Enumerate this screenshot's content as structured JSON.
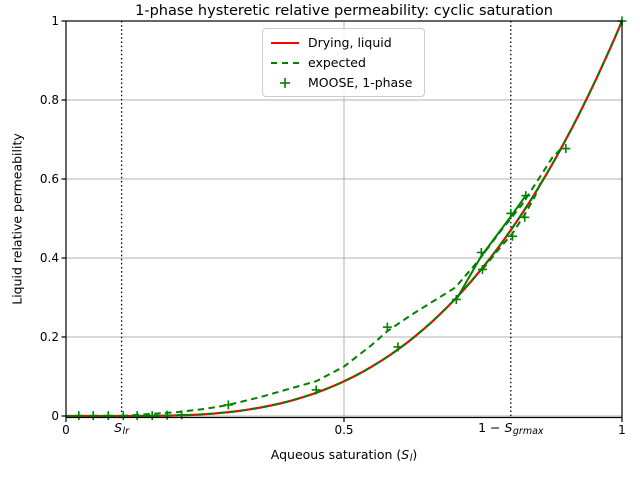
{
  "figure": {
    "background": "#ffffff"
  },
  "chart_data": {
    "type": "line",
    "title": "1-phase hysteretic relative permeability: cyclic saturation",
    "xlabel": {
      "pre": "Aqueous saturation (",
      "sym": "S",
      "sub": "l",
      "post": ")"
    },
    "ylabel": "Liquid relative permeability",
    "xlim": [
      0,
      1
    ],
    "ylim": [
      0,
      1
    ],
    "xticks": [
      {
        "v": 0,
        "label": "0"
      },
      {
        "v": 0.5,
        "label": "0.5"
      },
      {
        "v": 1,
        "label": "1"
      }
    ],
    "yticks": [
      {
        "v": 0,
        "label": "0"
      },
      {
        "v": 0.2,
        "label": "0.2"
      },
      {
        "v": 0.4,
        "label": "0.4"
      },
      {
        "v": 0.6,
        "label": "0.6"
      },
      {
        "v": 0.8,
        "label": "0.8"
      },
      {
        "v": 1,
        "label": "1"
      }
    ],
    "grid": {
      "on": true,
      "color": "#b0b0b0"
    },
    "vlines": [
      {
        "x": 0.1,
        "color": "#000000",
        "style": "dotted",
        "label": {
          "pre": "",
          "sym": "S",
          "sub": "lr"
        }
      },
      {
        "x": 0.8,
        "color": "#000000",
        "style": "dotted",
        "label": {
          "pre": "1 − ",
          "sym": "S",
          "sub": "grmax"
        }
      }
    ],
    "legend": {
      "position": "upper center",
      "entries": [
        {
          "label": "Drying, liquid",
          "sample": "line-solid",
          "color": "#ff0000"
        },
        {
          "label": "expected",
          "sample": "line-dashed",
          "color": "#008000"
        },
        {
          "label": "MOOSE, 1-phase",
          "sample": "plus-marker",
          "color": "#008000"
        }
      ]
    },
    "series": [
      {
        "name": "Drying, liquid",
        "color": "#ff0000",
        "style": "solid",
        "model": {
          "kind": "corey_drying",
          "s_lr": 0.1,
          "exponent": 3,
          "range": [
            0,
            1
          ]
        }
      },
      {
        "name": "expected",
        "color": "#008000",
        "style": "dashed",
        "branches": {
          "drying_overlay": {
            "kind": "corey_drying",
            "s_lr": 0.1,
            "exponent": 3,
            "range": [
              0,
              1
            ]
          },
          "wetting": [
            [
              0.1,
              0
            ],
            [
              0.2,
              0.01
            ],
            [
              0.25,
              0.018
            ],
            [
              0.292,
              0.028
            ],
            [
              0.35,
              0.048
            ],
            [
              0.4,
              0.068
            ],
            [
              0.45,
              0.088
            ],
            [
              0.5,
              0.125
            ],
            [
              0.55,
              0.18
            ],
            [
              0.578,
              0.215
            ],
            [
              0.62,
              0.255
            ],
            [
              0.66,
              0.29
            ],
            [
              0.7,
              0.325
            ],
            [
              0.74,
              0.39
            ],
            [
              0.78,
              0.465
            ],
            [
              0.82,
              0.535
            ],
            [
              0.85,
              0.6
            ],
            [
              0.875,
              0.655
            ],
            [
              0.895,
              0.683
            ]
          ],
          "rewetting_scan": [
            [
              0.749,
              0.371
            ],
            [
              0.78,
              0.425
            ],
            [
              0.803,
              0.462
            ],
            [
              0.825,
              0.51
            ],
            [
              0.843,
              0.555
            ],
            [
              0.855,
              0.595
            ]
          ]
        }
      },
      {
        "name": "MOOSE, 1-phase",
        "color": "#008000",
        "style": "plus",
        "connecting_scan": [
          [
            0.702,
            0.295
          ],
          [
            0.747,
            0.405
          ],
          [
            0.8,
            0.505
          ],
          [
            0.827,
            0.558
          ]
        ],
        "points": [
          [
            0.023,
            0.001
          ],
          [
            0.049,
            0.001
          ],
          [
            0.076,
            0.001
          ],
          [
            0.103,
            0.001
          ],
          [
            0.128,
            0.001
          ],
          [
            0.155,
            0.001
          ],
          [
            0.182,
            0.002
          ],
          [
            0.208,
            0.003
          ],
          [
            0.292,
            0.028
          ],
          [
            0.45,
            0.066
          ],
          [
            0.578,
            0.225
          ],
          [
            0.597,
            0.175
          ],
          [
            0.702,
            0.295
          ],
          [
            0.747,
            0.414
          ],
          [
            0.749,
            0.371
          ],
          [
            0.8,
            0.513
          ],
          [
            0.803,
            0.455
          ],
          [
            0.825,
            0.503
          ],
          [
            0.827,
            0.558
          ],
          [
            0.899,
            0.677
          ],
          [
            1.0,
            1.0
          ]
        ]
      }
    ]
  }
}
